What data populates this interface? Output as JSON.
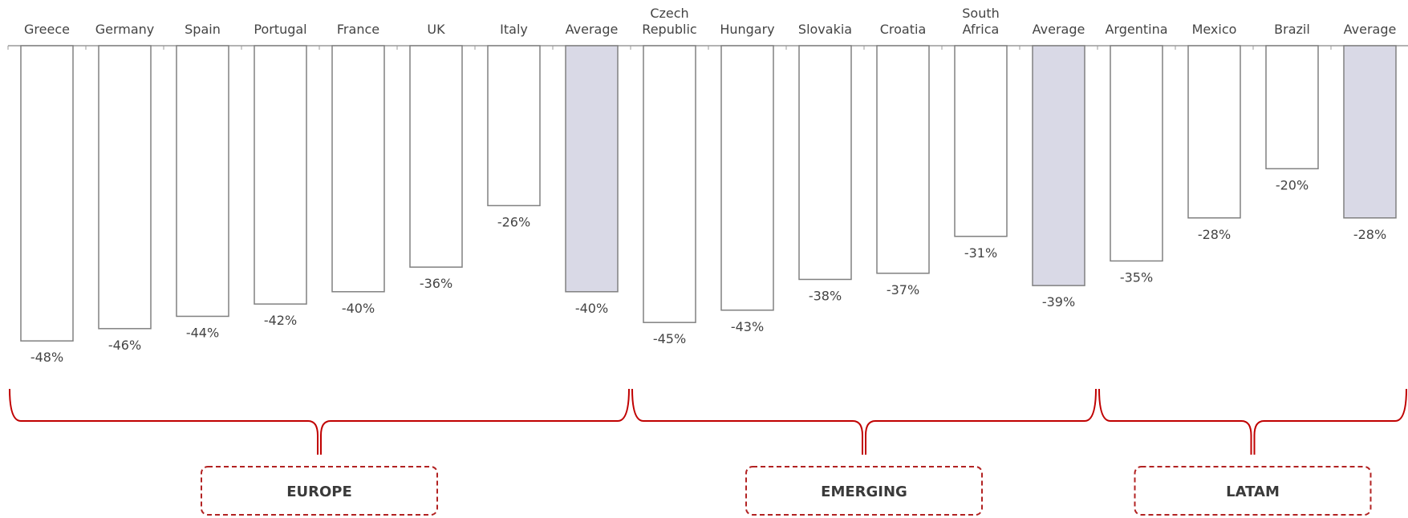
{
  "chart_data": {
    "type": "bar",
    "orientation": "vertical-negative",
    "unit": "%",
    "ylim": [
      -50,
      0
    ],
    "categories": [
      [
        "Greece"
      ],
      [
        "Germany"
      ],
      [
        "Spain"
      ],
      [
        "Portugal"
      ],
      [
        "France"
      ],
      [
        "UK"
      ],
      [
        "Italy"
      ],
      [
        "Average"
      ],
      [
        "Czech",
        "Republic"
      ],
      [
        "Hungary"
      ],
      [
        "Slovakia"
      ],
      [
        "Croatia"
      ],
      [
        "South",
        "Africa"
      ],
      [
        "Average"
      ],
      [
        "Argentina"
      ],
      [
        "Mexico"
      ],
      [
        "Brazil"
      ],
      [
        "Average"
      ]
    ],
    "values": [
      -48,
      -46,
      -44,
      -42,
      -40,
      -36,
      -26,
      -40,
      -45,
      -43,
      -38,
      -37,
      -31,
      -39,
      -35,
      -28,
      -20,
      -28
    ],
    "value_labels": [
      "-48%",
      "-46%",
      "-44%",
      "-42%",
      "-40%",
      "-36%",
      "-26%",
      "-40%",
      "-45%",
      "-43%",
      "-38%",
      "-37%",
      "-31%",
      "-39%",
      "-35%",
      "-28%",
      "-20%",
      "-28%"
    ],
    "highlighted": [
      false,
      false,
      false,
      false,
      false,
      false,
      false,
      true,
      false,
      false,
      false,
      false,
      false,
      true,
      false,
      false,
      false,
      true
    ],
    "groups": [
      {
        "label": "EUROPE",
        "start": 0,
        "end": 7
      },
      {
        "label": "EMERGING",
        "start": 8,
        "end": 13
      },
      {
        "label": "LATAM",
        "start": 14,
        "end": 17
      }
    ],
    "colors": {
      "bar_fill": "#ffffff",
      "highlight_fill": "#d9d9e6",
      "bar_stroke": "#808080",
      "axis": "#999999",
      "brace": "#c00000",
      "box_border": "#b22222"
    },
    "grid": false,
    "legend": "none"
  }
}
